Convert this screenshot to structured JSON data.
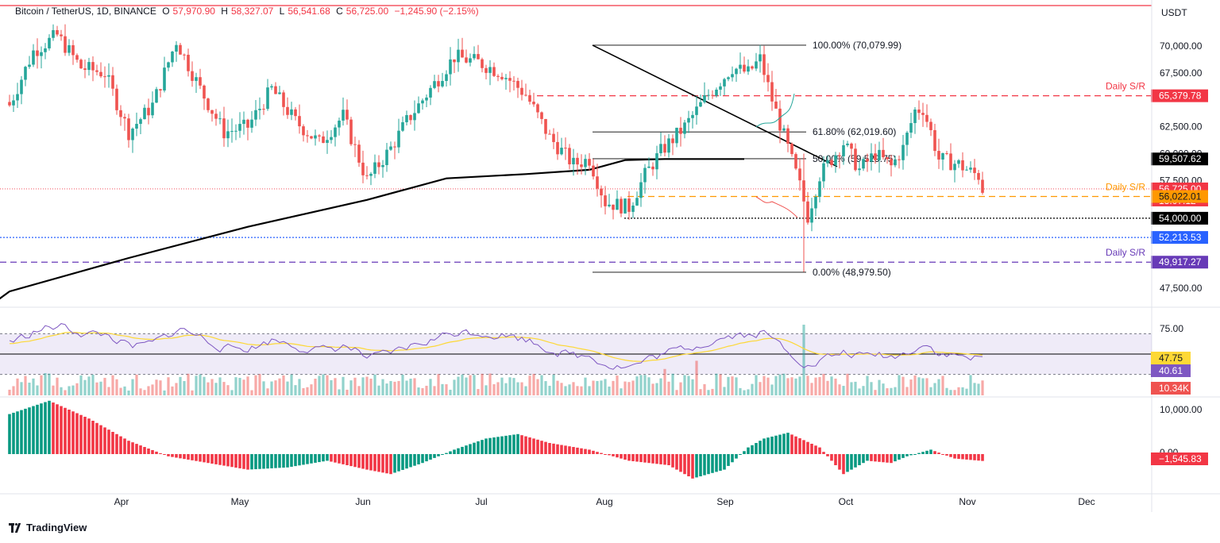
{
  "header": {
    "symbol": "Bitcoin / TetherUS, 1D, BINANCE",
    "o_label": "O",
    "o_value": "57,970.90",
    "h_label": "H",
    "h_value": "58,327.07",
    "l_label": "L",
    "l_value": "56,541.68",
    "c_label": "C",
    "c_value": "56,725.00",
    "change": "−1,245.90 (−2.15%)"
  },
  "axis_unit": "USDT",
  "brand": "TradingView",
  "colors": {
    "up": "#26a69a",
    "down": "#ef5350",
    "sr_red": "#f23645",
    "sr_orange": "#ff9800",
    "sr_purple": "#673ab7",
    "sr_blue": "#2962ff",
    "ma": "#000000",
    "rsi": "#7e57c2",
    "rsi_ma": "#fdd835"
  },
  "chart_data": [
    {
      "type": "candlestick",
      "name_panel": "price",
      "x_ticks": [
        "Apr",
        "May",
        "Jun",
        "Jul",
        "Aug",
        "Sep",
        "Oct",
        "Nov",
        "Dec"
      ],
      "y_ticks": [
        "70,000.00",
        "67,500.00",
        "62,500.00",
        "60,000.00",
        "57,500.00",
        "47,500.00"
      ],
      "y_tick_values": [
        70000,
        67500,
        62500,
        60000,
        57500,
        47500
      ],
      "ylim": [
        46200,
        73300
      ],
      "moving_average_200d": [
        [
          -10,
          44500
        ],
        [
          0,
          47200
        ],
        [
          30,
          50300
        ],
        [
          60,
          53200
        ],
        [
          90,
          55700
        ],
        [
          110,
          57700
        ],
        [
          130,
          58100
        ],
        [
          146,
          58500
        ],
        [
          155,
          59400
        ],
        [
          165,
          59500
        ],
        [
          185,
          59500
        ]
      ],
      "price_labels": [
        {
          "label": "65,379.78",
          "value": 65379.78,
          "color": "#f23645"
        },
        {
          "label": "59,507.62",
          "value": 59507.62,
          "color": "#000000"
        },
        {
          "label": "56,725.00",
          "value": 56725.0,
          "color": "#f23645",
          "countdown": "13:07:12"
        },
        {
          "label": "56,022.01",
          "value": 56022.01,
          "color": "#ff9800"
        },
        {
          "label": "54,000.00",
          "value": 54000.0,
          "color": "#000000"
        },
        {
          "label": "52,213.53",
          "value": 52213.53,
          "color": "#2962ff"
        },
        {
          "label": "49,917.27",
          "value": 49917.27,
          "color": "#673ab7"
        }
      ],
      "support_resistance": [
        {
          "label": "Daily S/R",
          "value": 65379.78,
          "color": "#f23645"
        },
        {
          "label": "Daily S/R",
          "value": 56022.01,
          "color": "#ff9800"
        },
        {
          "label": "Daily S/R",
          "value": 49917.27,
          "color": "#673ab7"
        }
      ],
      "fibonacci": [
        {
          "label": "100.00% (70,079.99)",
          "value": 70079.99
        },
        {
          "label": "61.80% (62,019.60)",
          "value": 62019.6
        },
        {
          "label": "50.00% (59,529.75)",
          "value": 59529.75
        },
        {
          "label": "0.00% (48,979.50)",
          "value": 48979.5
        }
      ],
      "trendline": [
        [
          147,
          70079.99
        ],
        [
          209,
          58800
        ]
      ],
      "top_line_value": 73000
    },
    {
      "type": "line",
      "name_panel": "rsi",
      "y_ticks": [
        "75.00"
      ],
      "levels": [
        70,
        50,
        30
      ],
      "rsi_last": "40.61",
      "rsi_ma_last": "47.75",
      "volume_last": "10.34K",
      "ylim": [
        20,
        90
      ]
    },
    {
      "type": "bar",
      "name_panel": "histogram",
      "y_ticks": [
        "10,000.00",
        "0.00"
      ],
      "last": "−1,545.83",
      "ylim": [
        -7000,
        13500
      ]
    }
  ]
}
